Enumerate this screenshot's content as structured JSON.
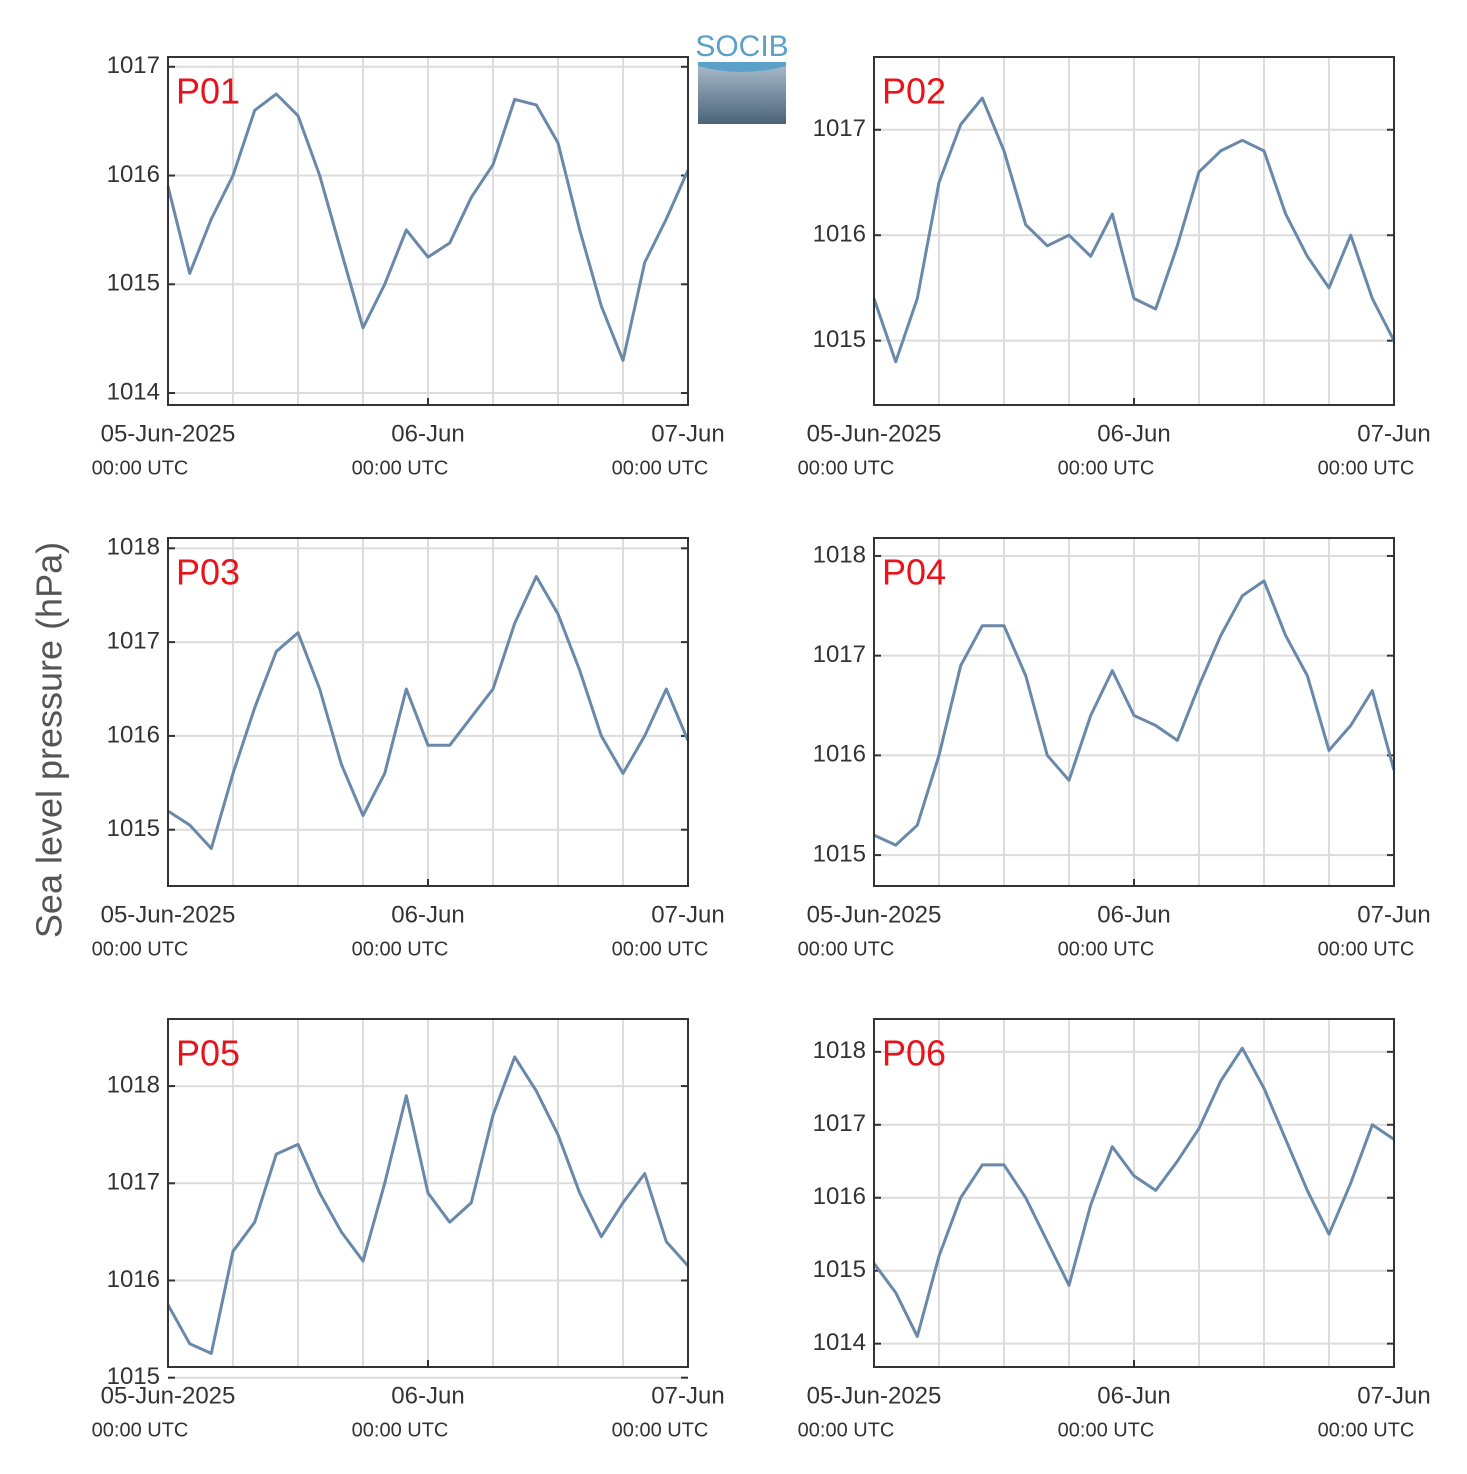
{
  "ylabel": "Sea level pressure (hPa)",
  "logo": "SOCIB",
  "chart_data": [
    {
      "type": "line",
      "title": "P01",
      "title_color": "#e8141c",
      "x": [
        "2025-06-05 00:00",
        "2025-06-05 02:00",
        "2025-06-05 04:00",
        "2025-06-05 06:00",
        "2025-06-05 08:00",
        "2025-06-05 10:00",
        "2025-06-05 12:00",
        "2025-06-05 14:00",
        "2025-06-05 16:00",
        "2025-06-05 18:00",
        "2025-06-05 20:00",
        "2025-06-05 22:00",
        "2025-06-06 00:00",
        "2025-06-06 02:00",
        "2025-06-06 04:00",
        "2025-06-06 06:00",
        "2025-06-06 08:00",
        "2025-06-06 10:00",
        "2025-06-06 12:00",
        "2025-06-06 14:00",
        "2025-06-06 16:00",
        "2025-06-06 18:00",
        "2025-06-06 20:00",
        "2025-06-06 22:00",
        "2025-06-07 00:00"
      ],
      "series": [
        {
          "color": "#6a89aa",
          "values": [
            1015.9,
            1015.1,
            1015.6,
            1016.0,
            1016.6,
            1016.75,
            1016.55,
            1016.0,
            1015.3,
            1014.6,
            1015.0,
            1015.5,
            1015.25,
            1015.38,
            1015.8,
            1016.1,
            1016.7,
            1016.65,
            1016.3,
            1015.5,
            1014.8,
            1014.3,
            1015.2,
            1015.6,
            1016.05
          ]
        }
      ],
      "xlim": [
        "2025-06-05 00:00",
        "2025-06-07 00:00"
      ],
      "xticks": [
        {
          "value": "2025-06-05 00:00",
          "label": [
            "05-Jun-2025",
            "00:00 UTC"
          ]
        },
        {
          "value": "2025-06-06 00:00",
          "label": [
            "06-Jun",
            "00:00 UTC"
          ]
        },
        {
          "value": "2025-06-07 00:00",
          "label": [
            "07-Jun",
            "00:00 UTC"
          ]
        }
      ],
      "xgrid": [
        "2025-06-05 06:00",
        "2025-06-05 12:00",
        "2025-06-05 18:00",
        "2025-06-06 00:00",
        "2025-06-06 06:00",
        "2025-06-06 12:00",
        "2025-06-06 18:00"
      ],
      "ylim": [
        1013.89,
        1017.09
      ],
      "yticks": [
        1014,
        1015,
        1016,
        1017
      ],
      "grid": true
    },
    {
      "type": "line",
      "title": "P02",
      "title_color": "#e8141c",
      "x": [
        "2025-06-05 00:00",
        "2025-06-05 02:00",
        "2025-06-05 04:00",
        "2025-06-05 06:00",
        "2025-06-05 08:00",
        "2025-06-05 10:00",
        "2025-06-05 12:00",
        "2025-06-05 14:00",
        "2025-06-05 16:00",
        "2025-06-05 18:00",
        "2025-06-05 20:00",
        "2025-06-05 22:00",
        "2025-06-06 00:00",
        "2025-06-06 02:00",
        "2025-06-06 04:00",
        "2025-06-06 06:00",
        "2025-06-06 08:00",
        "2025-06-06 10:00",
        "2025-06-06 12:00",
        "2025-06-06 14:00",
        "2025-06-06 16:00",
        "2025-06-06 18:00",
        "2025-06-06 20:00",
        "2025-06-06 22:00",
        "2025-06-07 00:00"
      ],
      "series": [
        {
          "color": "#6a89aa",
          "values": [
            1015.4,
            1014.8,
            1015.4,
            1016.5,
            1017.05,
            1017.3,
            1016.8,
            1016.1,
            1015.9,
            1016.0,
            1015.8,
            1016.2,
            1015.4,
            1015.3,
            1015.9,
            1016.6,
            1016.8,
            1016.9,
            1016.8,
            1016.2,
            1015.8,
            1015.5,
            1016.0,
            1015.4,
            1015.0
          ]
        }
      ],
      "xlim": [
        "2025-06-05 00:00",
        "2025-06-07 00:00"
      ],
      "xticks": [
        {
          "value": "2025-06-05 00:00",
          "label": [
            "05-Jun-2025",
            "00:00 UTC"
          ]
        },
        {
          "value": "2025-06-06 00:00",
          "label": [
            "06-Jun",
            "00:00 UTC"
          ]
        },
        {
          "value": "2025-06-07 00:00",
          "label": [
            "07-Jun",
            "00:00 UTC"
          ]
        }
      ],
      "xgrid": [
        "2025-06-05 06:00",
        "2025-06-05 12:00",
        "2025-06-05 18:00",
        "2025-06-06 00:00",
        "2025-06-06 06:00",
        "2025-06-06 12:00",
        "2025-06-06 18:00"
      ],
      "ylim": [
        1014.39,
        1017.69
      ],
      "yticks": [
        1015,
        1016,
        1017
      ],
      "grid": true
    },
    {
      "type": "line",
      "title": "P03",
      "title_color": "#e8141c",
      "x": [
        "2025-06-05 00:00",
        "2025-06-05 02:00",
        "2025-06-05 04:00",
        "2025-06-05 06:00",
        "2025-06-05 08:00",
        "2025-06-05 10:00",
        "2025-06-05 12:00",
        "2025-06-05 14:00",
        "2025-06-05 16:00",
        "2025-06-05 18:00",
        "2025-06-05 20:00",
        "2025-06-05 22:00",
        "2025-06-06 00:00",
        "2025-06-06 02:00",
        "2025-06-06 04:00",
        "2025-06-06 06:00",
        "2025-06-06 08:00",
        "2025-06-06 10:00",
        "2025-06-06 12:00",
        "2025-06-06 14:00",
        "2025-06-06 16:00",
        "2025-06-06 18:00",
        "2025-06-06 20:00",
        "2025-06-06 22:00",
        "2025-06-07 00:00"
      ],
      "series": [
        {
          "color": "#6a89aa",
          "values": [
            1015.2,
            1015.05,
            1014.8,
            1015.6,
            1016.3,
            1016.9,
            1017.1,
            1016.5,
            1015.7,
            1015.15,
            1015.6,
            1016.5,
            1015.9,
            1015.9,
            1016.2,
            1016.5,
            1017.2,
            1017.7,
            1017.3,
            1016.7,
            1016.0,
            1015.6,
            1016.0,
            1016.5,
            1015.95
          ]
        }
      ],
      "xlim": [
        "2025-06-05 00:00",
        "2025-06-07 00:00"
      ],
      "xticks": [
        {
          "value": "2025-06-05 00:00",
          "label": [
            "05-Jun-2025",
            "00:00 UTC"
          ]
        },
        {
          "value": "2025-06-06 00:00",
          "label": [
            "06-Jun",
            "00:00 UTC"
          ]
        },
        {
          "value": "2025-06-07 00:00",
          "label": [
            "07-Jun",
            "00:00 UTC"
          ]
        }
      ],
      "xgrid": [
        "2025-06-05 06:00",
        "2025-06-05 12:00",
        "2025-06-05 18:00",
        "2025-06-06 00:00",
        "2025-06-06 06:00",
        "2025-06-06 12:00",
        "2025-06-06 18:00"
      ],
      "ylim": [
        1014.4,
        1018.11
      ],
      "yticks": [
        1015,
        1016,
        1017,
        1018
      ],
      "grid": true
    },
    {
      "type": "line",
      "title": "P04",
      "title_color": "#e8141c",
      "x": [
        "2025-06-05 00:00",
        "2025-06-05 02:00",
        "2025-06-05 04:00",
        "2025-06-05 06:00",
        "2025-06-05 08:00",
        "2025-06-05 10:00",
        "2025-06-05 12:00",
        "2025-06-05 14:00",
        "2025-06-05 16:00",
        "2025-06-05 18:00",
        "2025-06-05 20:00",
        "2025-06-05 22:00",
        "2025-06-06 00:00",
        "2025-06-06 02:00",
        "2025-06-06 04:00",
        "2025-06-06 06:00",
        "2025-06-06 08:00",
        "2025-06-06 10:00",
        "2025-06-06 12:00",
        "2025-06-06 14:00",
        "2025-06-06 16:00",
        "2025-06-06 18:00",
        "2025-06-06 20:00",
        "2025-06-06 22:00",
        "2025-06-07 00:00"
      ],
      "series": [
        {
          "color": "#6a89aa",
          "values": [
            1015.2,
            1015.1,
            1015.3,
            1016.0,
            1016.9,
            1017.3,
            1017.3,
            1016.8,
            1016.0,
            1015.75,
            1016.4,
            1016.85,
            1016.4,
            1016.3,
            1016.15,
            1016.7,
            1017.2,
            1017.6,
            1017.75,
            1017.2,
            1016.8,
            1016.05,
            1016.3,
            1016.65,
            1015.85
          ]
        }
      ],
      "xlim": [
        "2025-06-05 00:00",
        "2025-06-07 00:00"
      ],
      "xticks": [
        {
          "value": "2025-06-05 00:00",
          "label": [
            "05-Jun-2025",
            "00:00 UTC"
          ]
        },
        {
          "value": "2025-06-06 00:00",
          "label": [
            "06-Jun",
            "00:00 UTC"
          ]
        },
        {
          "value": "2025-06-07 00:00",
          "label": [
            "07-Jun",
            "00:00 UTC"
          ]
        }
      ],
      "xgrid": [
        "2025-06-05 06:00",
        "2025-06-05 12:00",
        "2025-06-05 18:00",
        "2025-06-06 00:00",
        "2025-06-06 06:00",
        "2025-06-06 12:00",
        "2025-06-06 18:00"
      ],
      "ylim": [
        1014.69,
        1018.18
      ],
      "yticks": [
        1015,
        1016,
        1017,
        1018
      ],
      "grid": true
    },
    {
      "type": "line",
      "title": "P05",
      "title_color": "#e8141c",
      "x": [
        "2025-06-05 00:00",
        "2025-06-05 02:00",
        "2025-06-05 04:00",
        "2025-06-05 06:00",
        "2025-06-05 08:00",
        "2025-06-05 10:00",
        "2025-06-05 12:00",
        "2025-06-05 14:00",
        "2025-06-05 16:00",
        "2025-06-05 18:00",
        "2025-06-05 20:00",
        "2025-06-05 22:00",
        "2025-06-06 00:00",
        "2025-06-06 02:00",
        "2025-06-06 04:00",
        "2025-06-06 06:00",
        "2025-06-06 08:00",
        "2025-06-06 10:00",
        "2025-06-06 12:00",
        "2025-06-06 14:00",
        "2025-06-06 16:00",
        "2025-06-06 18:00",
        "2025-06-06 20:00",
        "2025-06-06 22:00",
        "2025-06-07 00:00"
      ],
      "series": [
        {
          "color": "#6a89aa",
          "values": [
            1015.75,
            1015.35,
            1015.25,
            1016.3,
            1016.6,
            1017.3,
            1017.4,
            1016.9,
            1016.5,
            1016.2,
            1017.0,
            1017.9,
            1016.9,
            1016.6,
            1016.8,
            1017.7,
            1018.3,
            1017.95,
            1017.5,
            1016.9,
            1016.45,
            1016.8,
            1017.1,
            1016.4,
            1016.15
          ]
        }
      ],
      "xlim": [
        "2025-06-05 00:00",
        "2025-06-07 00:00"
      ],
      "xticks": [
        {
          "value": "2025-06-05 00:00",
          "label": [
            "05-Jun-2025",
            "00:00 UTC"
          ]
        },
        {
          "value": "2025-06-06 00:00",
          "label": [
            "06-Jun",
            "00:00 UTC"
          ]
        },
        {
          "value": "2025-06-07 00:00",
          "label": [
            "07-Jun",
            "00:00 UTC"
          ]
        }
      ],
      "xgrid": [
        "2025-06-05 06:00",
        "2025-06-05 12:00",
        "2025-06-05 18:00",
        "2025-06-06 00:00",
        "2025-06-06 06:00",
        "2025-06-06 12:00",
        "2025-06-06 18:00"
      ],
      "ylim": [
        1015.11,
        1018.69
      ],
      "yticks": [
        1015,
        1016,
        1017,
        1018
      ],
      "grid": true
    },
    {
      "type": "line",
      "title": "P06",
      "title_color": "#e8141c",
      "x": [
        "2025-06-05 00:00",
        "2025-06-05 02:00",
        "2025-06-05 04:00",
        "2025-06-05 06:00",
        "2025-06-05 08:00",
        "2025-06-05 10:00",
        "2025-06-05 12:00",
        "2025-06-05 14:00",
        "2025-06-05 16:00",
        "2025-06-05 18:00",
        "2025-06-05 20:00",
        "2025-06-05 22:00",
        "2025-06-06 00:00",
        "2025-06-06 02:00",
        "2025-06-06 04:00",
        "2025-06-06 06:00",
        "2025-06-06 08:00",
        "2025-06-06 10:00",
        "2025-06-06 12:00",
        "2025-06-06 14:00",
        "2025-06-06 16:00",
        "2025-06-06 18:00",
        "2025-06-06 20:00",
        "2025-06-06 22:00",
        "2025-06-07 00:00"
      ],
      "series": [
        {
          "color": "#6a89aa",
          "values": [
            1015.1,
            1014.7,
            1014.1,
            1015.2,
            1016.0,
            1016.45,
            1016.45,
            1016.0,
            1015.4,
            1014.8,
            1015.9,
            1016.7,
            1016.3,
            1016.1,
            1016.5,
            1016.95,
            1017.6,
            1018.05,
            1017.5,
            1016.8,
            1016.1,
            1015.5,
            1016.2,
            1017.0,
            1016.8
          ]
        }
      ],
      "xlim": [
        "2025-06-05 00:00",
        "2025-06-07 00:00"
      ],
      "xticks": [
        {
          "value": "2025-06-05 00:00",
          "label": [
            "05-Jun-2025",
            "00:00 UTC"
          ]
        },
        {
          "value": "2025-06-06 00:00",
          "label": [
            "06-Jun",
            "00:00 UTC"
          ]
        },
        {
          "value": "2025-06-07 00:00",
          "label": [
            "07-Jun",
            "00:00 UTC"
          ]
        }
      ],
      "xgrid": [
        "2025-06-05 06:00",
        "2025-06-05 12:00",
        "2025-06-05 18:00",
        "2025-06-06 00:00",
        "2025-06-06 06:00",
        "2025-06-06 12:00",
        "2025-06-06 18:00"
      ],
      "ylim": [
        1013.68,
        1018.45
      ],
      "yticks": [
        1014,
        1015,
        1016,
        1017,
        1018
      ],
      "grid": true
    }
  ]
}
